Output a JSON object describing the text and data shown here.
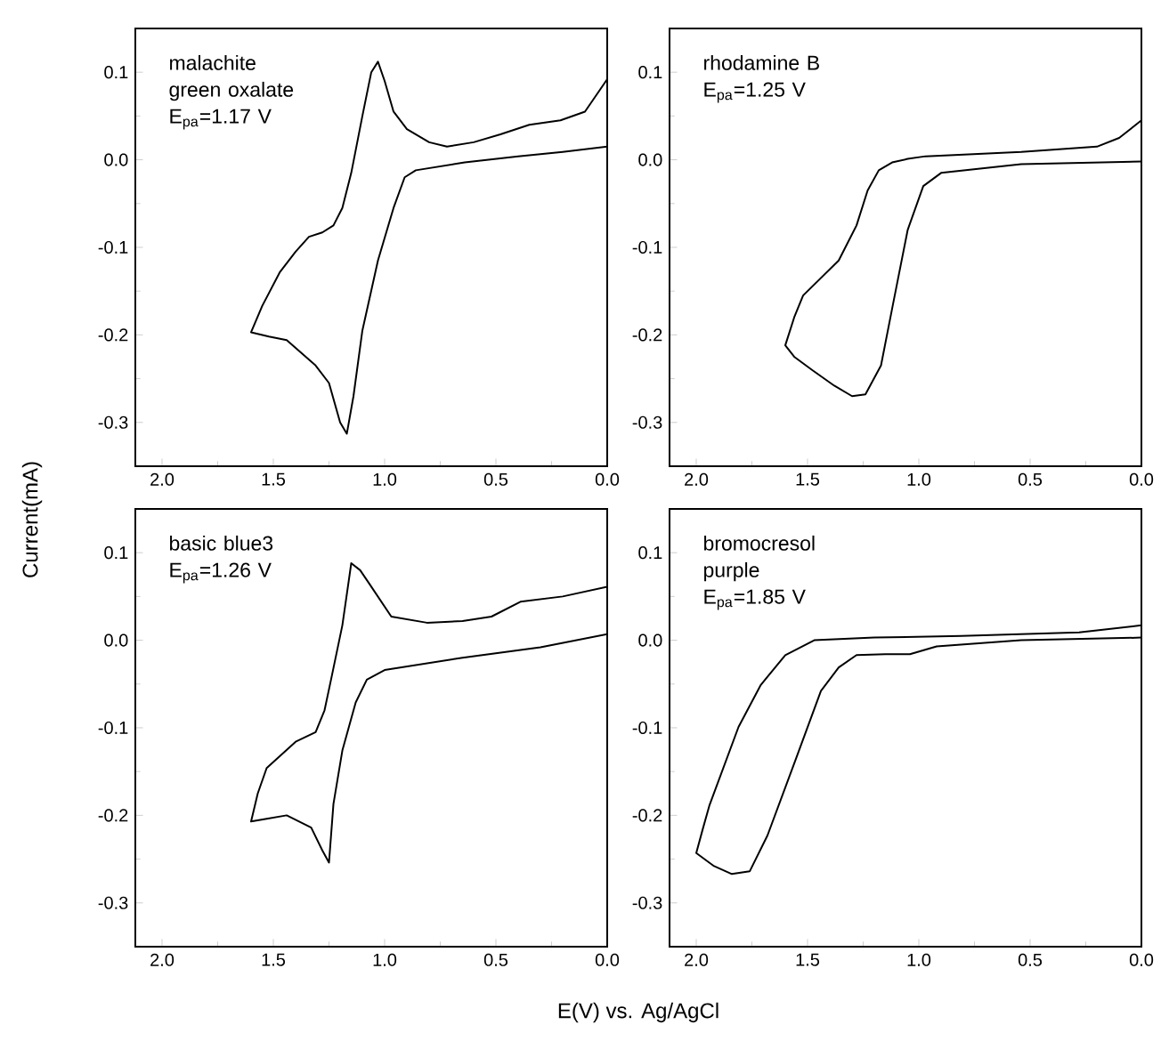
{
  "chart_data": [
    {
      "type": "line",
      "ylabel": "Current(mA)",
      "xlim": [
        2.12,
        0
      ],
      "ylim": [
        -0.35,
        0.15
      ],
      "xticks": [
        {
          "value": 2.0,
          "label": "2.0"
        },
        {
          "value": 1.5,
          "label": "1.5"
        },
        {
          "value": 1.0,
          "label": "1.0"
        },
        {
          "value": 0.5,
          "label": "0.5"
        },
        {
          "value": 0.0,
          "label": "0.0"
        }
      ],
      "yticks": [
        {
          "value": 0.1,
          "label": "0.1"
        },
        {
          "value": 0.0,
          "label": "0.0"
        },
        {
          "value": -0.1,
          "label": "-0.1"
        },
        {
          "value": -0.2,
          "label": "-0.2"
        },
        {
          "value": -0.3,
          "label": "-0.3"
        }
      ],
      "annotations": [
        "malachite green oxalate",
        "E$_{pa}$=1.17 V"
      ],
      "series": [
        {
          "color": "#000000",
          "x": [
            0,
            0.2,
            0.4,
            0.64,
            0.86,
            0.91,
            0.96,
            1.03,
            1.1,
            1.14,
            1.17,
            1.2,
            1.25,
            1.31,
            1.44,
            1.52,
            1.6,
            1.55,
            1.47,
            1.4,
            1.34,
            1.28,
            1.23,
            1.19,
            1.15,
            1.1,
            1.06,
            1.03,
            1.0,
            0.96,
            0.9,
            0.8,
            0.72,
            0.6,
            0.48,
            0.35,
            0.21,
            0.1,
            0.0
          ],
          "values": [
            0.015,
            0.009,
            0.004,
            -0.003,
            -0.012,
            -0.02,
            -0.055,
            -0.115,
            -0.195,
            -0.27,
            -0.313,
            -0.3,
            -0.255,
            -0.235,
            -0.206,
            -0.202,
            -0.197,
            -0.167,
            -0.128,
            -0.105,
            -0.088,
            -0.083,
            -0.075,
            -0.055,
            -0.015,
            0.05,
            0.1,
            0.112,
            0.09,
            0.055,
            0.035,
            0.02,
            0.015,
            0.02,
            0.029,
            0.04,
            0.045,
            0.055,
            0.092
          ]
        }
      ]
    },
    {
      "type": "line",
      "xlim": [
        2.12,
        0
      ],
      "ylim": [
        -0.35,
        0.15
      ],
      "xticks": [
        {
          "value": 2.0,
          "label": "2.0"
        },
        {
          "value": 1.5,
          "label": "1.5"
        },
        {
          "value": 1.0,
          "label": "1.0"
        },
        {
          "value": 0.5,
          "label": "0.5"
        },
        {
          "value": 0.0,
          "label": "0.0"
        }
      ],
      "yticks": [
        {
          "value": 0.1,
          "label": "0.1"
        },
        {
          "value": 0.0,
          "label": "0.0"
        },
        {
          "value": -0.1,
          "label": "-0.1"
        },
        {
          "value": -0.2,
          "label": "-0.2"
        },
        {
          "value": -0.3,
          "label": "-0.3"
        }
      ],
      "annotations": [
        "rhodamine B",
        "E$_{pa}$=1.25 V"
      ],
      "series": [
        {
          "color": "#000000",
          "x": [
            0,
            0.54,
            0.9,
            0.98,
            1.05,
            1.12,
            1.17,
            1.24,
            1.3,
            1.38,
            1.48,
            1.56,
            1.6,
            1.56,
            1.52,
            1.44,
            1.36,
            1.28,
            1.23,
            1.18,
            1.12,
            1.05,
            0.97,
            0.54,
            0.2,
            0.1,
            0
          ],
          "values": [
            -0.002,
            -0.005,
            -0.015,
            -0.03,
            -0.08,
            -0.17,
            -0.235,
            -0.268,
            -0.27,
            -0.258,
            -0.24,
            -0.225,
            -0.212,
            -0.18,
            -0.155,
            -0.135,
            -0.115,
            -0.075,
            -0.035,
            -0.012,
            -0.003,
            0.001,
            0.004,
            0.009,
            0.015,
            0.025,
            0.045
          ]
        }
      ]
    },
    {
      "type": "line",
      "xlabel": "E(V) vs. Ag/AgCl",
      "xlim": [
        2.12,
        0
      ],
      "ylim": [
        -0.35,
        0.15
      ],
      "xticks": [
        {
          "value": 2.0,
          "label": "2.0"
        },
        {
          "value": 1.5,
          "label": "1.5"
        },
        {
          "value": 1.0,
          "label": "1.0"
        },
        {
          "value": 0.5,
          "label": "0.5"
        },
        {
          "value": 0.0,
          "label": "0.0"
        }
      ],
      "yticks": [
        {
          "value": 0.1,
          "label": "0.1"
        },
        {
          "value": 0.0,
          "label": "0.0"
        },
        {
          "value": -0.1,
          "label": "-0.1"
        },
        {
          "value": -0.2,
          "label": "-0.2"
        },
        {
          "value": -0.3,
          "label": "-0.3"
        }
      ],
      "annotations": [
        "basic blue3",
        "E$_{pa}$=1.26 V"
      ],
      "series": [
        {
          "color": "#000000",
          "x": [
            0,
            0.3,
            0.65,
            1.0,
            1.08,
            1.13,
            1.19,
            1.23,
            1.25,
            1.28,
            1.33,
            1.44,
            1.53,
            1.6,
            1.57,
            1.53,
            1.4,
            1.31,
            1.27,
            1.24,
            1.19,
            1.16,
            1.15,
            1.11,
            1.07,
            0.97,
            0.81,
            0.65,
            0.52,
            0.39,
            0.2,
            0
          ],
          "values": [
            0.007,
            -0.008,
            -0.02,
            -0.034,
            -0.045,
            -0.071,
            -0.126,
            -0.187,
            -0.254,
            -0.24,
            -0.214,
            -0.2,
            -0.204,
            -0.207,
            -0.175,
            -0.146,
            -0.116,
            -0.105,
            -0.08,
            -0.044,
            0.017,
            0.07,
            0.088,
            0.08,
            0.065,
            0.027,
            0.02,
            0.022,
            0.027,
            0.044,
            0.05,
            0.061
          ]
        }
      ]
    },
    {
      "type": "line",
      "xlim": [
        2.12,
        0
      ],
      "ylim": [
        -0.35,
        0.15
      ],
      "xticks": [
        {
          "value": 2.0,
          "label": "2.0"
        },
        {
          "value": 1.5,
          "label": "1.5"
        },
        {
          "value": 1.0,
          "label": "1.0"
        },
        {
          "value": 0.5,
          "label": "0.5"
        },
        {
          "value": 0.0,
          "label": "0.0"
        }
      ],
      "yticks": [
        {
          "value": 0.1,
          "label": "0.1"
        },
        {
          "value": 0.0,
          "label": "0.0"
        },
        {
          "value": -0.1,
          "label": "-0.1"
        },
        {
          "value": -0.2,
          "label": "-0.2"
        },
        {
          "value": -0.3,
          "label": "-0.3"
        }
      ],
      "annotations": [
        "bromocresol purple",
        "E$_{pa}$=1.85 V"
      ],
      "series": [
        {
          "color": "#000000",
          "x": [
            0,
            0.54,
            0.92,
            1.04,
            1.15,
            1.28,
            1.36,
            1.44,
            1.55,
            1.68,
            1.76,
            1.84,
            1.92,
            2.0,
            1.97,
            1.94,
            1.81,
            1.71,
            1.6,
            1.47,
            1.2,
            0.81,
            0.28,
            0
          ],
          "values": [
            0.003,
            0.0,
            -0.007,
            -0.016,
            -0.016,
            -0.017,
            -0.031,
            -0.058,
            -0.134,
            -0.223,
            -0.264,
            -0.267,
            -0.258,
            -0.243,
            -0.215,
            -0.188,
            -0.099,
            -0.051,
            -0.017,
            0.0,
            0.003,
            0.005,
            0.009,
            0.017
          ]
        }
      ]
    }
  ]
}
